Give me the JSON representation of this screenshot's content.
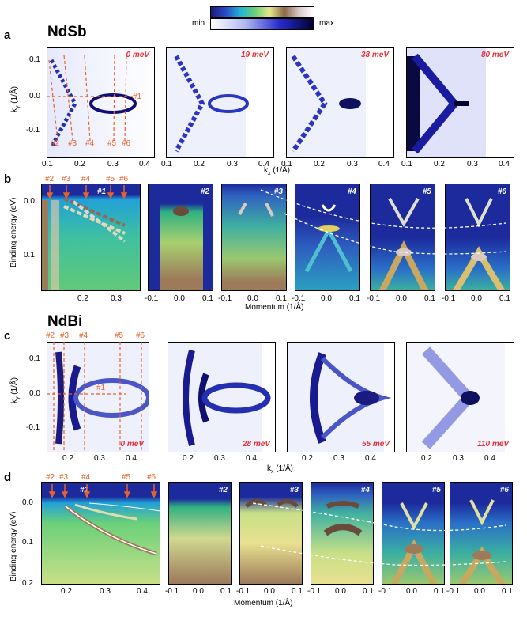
{
  "colorbar": {
    "min_label": "min",
    "max_label": "max"
  },
  "panels": {
    "a": "a",
    "b": "b",
    "c": "c",
    "d": "d"
  },
  "materials": {
    "top": "NdSb",
    "bottom": "NdBi"
  },
  "energies": {
    "a": [
      "0 meV",
      "19 meV",
      "38 meV",
      "80 meV"
    ],
    "c": [
      "0 meV",
      "28 meV",
      "55 meV",
      "110 meV"
    ]
  },
  "cuts": [
    "#1",
    "#2",
    "#3",
    "#4",
    "#5",
    "#6"
  ],
  "axes": {
    "ky": "k",
    "ky_sub": "y",
    "ky_unit": " (1/Å)",
    "kx": "k",
    "kx_sub": "x",
    "kx_unit": " (1/Å)",
    "binding": "Binding energy (eV)",
    "momentum": "Momentum (1/Å)"
  },
  "ticks": {
    "ky": [
      "0.1",
      "0.0",
      "-0.1"
    ],
    "kx_a": [
      "0.1",
      "0.2",
      "0.3",
      "0.4"
    ],
    "kx_c": [
      "0.2",
      "0.3",
      "0.4"
    ],
    "be_b": [
      "0.0",
      "0.1"
    ],
    "be_d": [
      "0.0",
      "0.1",
      "0.2"
    ],
    "b1_x": [
      "0.2",
      "0.3"
    ],
    "d1_x": [
      "0.2",
      "0.3",
      "0.4"
    ],
    "mom": [
      "-0.1",
      "0.0",
      "0.1"
    ]
  }
}
